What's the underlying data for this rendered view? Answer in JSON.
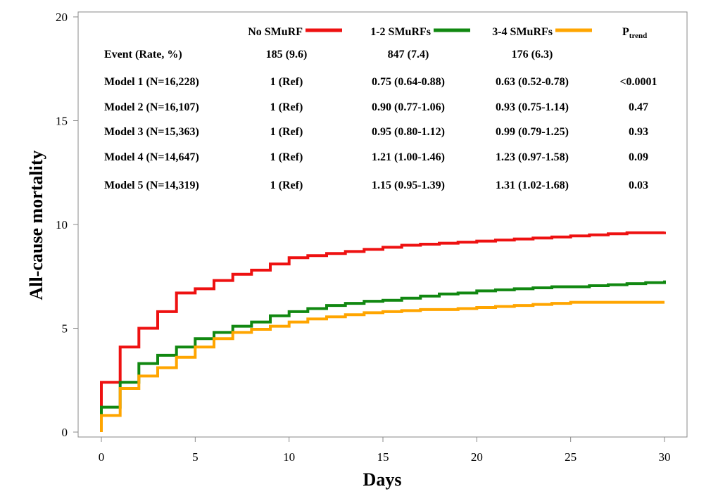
{
  "chart_data": {
    "type": "line",
    "xlabel": "Days",
    "ylabel": "All-cause mortality",
    "xlim": [
      0,
      30
    ],
    "ylim": [
      0,
      20
    ],
    "xticks": [
      0,
      5,
      10,
      15,
      20,
      25,
      30
    ],
    "yticks": [
      0,
      5,
      10,
      15,
      20
    ],
    "grid": false,
    "legend_position": "top",
    "series": [
      {
        "name": "No SMuRF",
        "color": "#ee1111",
        "step": true,
        "x": [
          0,
          1,
          2,
          3,
          4,
          5,
          6,
          7,
          8,
          9,
          10,
          11,
          12,
          13,
          14,
          15,
          16,
          17,
          18,
          19,
          20,
          21,
          22,
          23,
          24,
          25,
          26,
          27,
          28,
          29,
          30
        ],
        "y": [
          2.4,
          4.1,
          5.0,
          5.8,
          6.7,
          6.9,
          7.3,
          7.6,
          7.8,
          8.1,
          8.4,
          8.5,
          8.6,
          8.7,
          8.8,
          8.9,
          9.0,
          9.05,
          9.1,
          9.15,
          9.2,
          9.25,
          9.3,
          9.35,
          9.4,
          9.45,
          9.5,
          9.55,
          9.6,
          9.6,
          9.65
        ]
      },
      {
        "name": "1-2 SMuRFs",
        "color": "#118811",
        "step": true,
        "x": [
          0,
          1,
          2,
          3,
          4,
          5,
          6,
          7,
          8,
          9,
          10,
          11,
          12,
          13,
          14,
          15,
          16,
          17,
          18,
          19,
          20,
          21,
          22,
          23,
          24,
          25,
          26,
          27,
          28,
          29,
          30
        ],
        "y": [
          1.2,
          2.4,
          3.3,
          3.7,
          4.1,
          4.5,
          4.8,
          5.1,
          5.3,
          5.6,
          5.8,
          5.95,
          6.1,
          6.2,
          6.3,
          6.35,
          6.45,
          6.55,
          6.65,
          6.7,
          6.8,
          6.85,
          6.9,
          6.95,
          7.0,
          7.0,
          7.05,
          7.1,
          7.15,
          7.2,
          7.3
        ]
      },
      {
        "name": "3-4 SMuRFs",
        "color": "#ffa500",
        "step": true,
        "x": [
          0,
          1,
          2,
          3,
          4,
          5,
          6,
          7,
          8,
          9,
          10,
          11,
          12,
          13,
          14,
          15,
          16,
          17,
          18,
          19,
          20,
          21,
          22,
          23,
          24,
          25,
          26,
          27,
          28,
          29,
          30
        ],
        "y": [
          0.8,
          2.1,
          2.7,
          3.1,
          3.6,
          4.1,
          4.5,
          4.8,
          4.95,
          5.1,
          5.3,
          5.45,
          5.55,
          5.65,
          5.75,
          5.8,
          5.85,
          5.9,
          5.9,
          5.95,
          6.0,
          6.05,
          6.1,
          6.15,
          6.2,
          6.25,
          6.25,
          6.25,
          6.25,
          6.25,
          6.25
        ]
      }
    ]
  },
  "legend": {
    "items": [
      {
        "label": "No SMuRF",
        "color": "#ee1111"
      },
      {
        "label": "1-2 SMuRFs",
        "color": "#118811"
      },
      {
        "label": "3-4 SMuRFs",
        "color": "#ffa500"
      }
    ],
    "ptrend_main": "P",
    "ptrend_sub": "trend"
  },
  "table": {
    "rows": [
      {
        "label": "Event (Rate, %)",
        "cells": [
          "185 (9.6)",
          "847 (7.4)",
          "176 (6.3)",
          ""
        ]
      },
      {
        "label": "Model 1 (N=16,228)",
        "cells": [
          "1 (Ref)",
          "0.75 (0.64-0.88)",
          "0.63 (0.52-0.78)",
          "<0.0001"
        ]
      },
      {
        "label": "Model 2 (N=16,107)",
        "cells": [
          "1 (Ref)",
          "0.90 (0.77-1.06)",
          "0.93 (0.75-1.14)",
          "0.47"
        ]
      },
      {
        "label": "Model 3 (N=15,363)",
        "cells": [
          "1 (Ref)",
          "0.95 (0.80-1.12)",
          "0.99 (0.79-1.25)",
          "0.93"
        ]
      },
      {
        "label": "Model 4 (N=14,647)",
        "cells": [
          "1 (Ref)",
          "1.21 (1.00-1.46)",
          "1.23 (0.97-1.58)",
          "0.09"
        ]
      },
      {
        "label": "Model 5 (N=14,319)",
        "cells": [
          "1 (Ref)",
          "1.15 (0.95-1.39)",
          "1.31 (1.02-1.68)",
          "0.03"
        ]
      }
    ]
  }
}
